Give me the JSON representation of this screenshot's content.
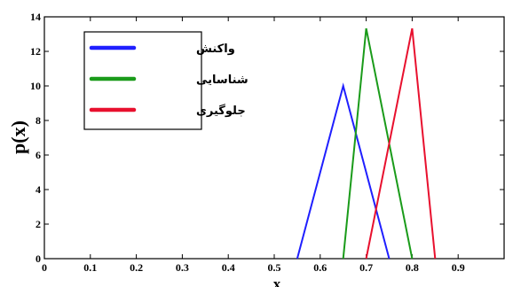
{
  "chart_data": {
    "type": "line",
    "xlabel": "x",
    "ylabel": "p(x)",
    "xlim": [
      0,
      1
    ],
    "ylim": [
      0,
      14
    ],
    "xticks": [
      "0",
      "0.1",
      "0.2",
      "0.3",
      "0.4",
      "0.5",
      "0.6",
      "0.7",
      "0.8",
      "0.9"
    ],
    "yticks": [
      "0",
      "2",
      "4",
      "6",
      "8",
      "10",
      "12",
      "14"
    ],
    "grid": false,
    "legend_position": "top-left",
    "series": [
      {
        "name": "واکنش",
        "color": "#1f1fff",
        "x": [
          0.55,
          0.65,
          0.75
        ],
        "y": [
          0,
          10,
          0
        ]
      },
      {
        "name": "شناسایی",
        "color": "#1a9b1a",
        "x": [
          0.65,
          0.7,
          0.8
        ],
        "y": [
          0,
          13.33,
          0
        ]
      },
      {
        "name": "جلوگیری",
        "color": "#e8102e",
        "x": [
          0.7,
          0.8,
          0.85
        ],
        "y": [
          0,
          13.33,
          0
        ]
      }
    ]
  }
}
